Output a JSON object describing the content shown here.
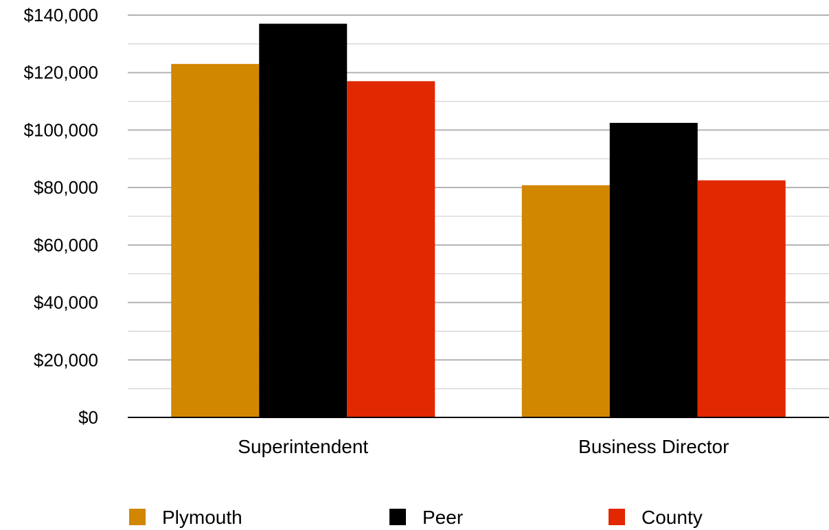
{
  "chart_data": {
    "type": "bar",
    "categories": [
      "Superintendent",
      "Business Director"
    ],
    "series": [
      {
        "name": "Plymouth",
        "values": [
          123000,
          80800
        ],
        "color": "#d18700"
      },
      {
        "name": "Peer",
        "values": [
          137000,
          102500
        ],
        "color": "#000000"
      },
      {
        "name": "County",
        "values": [
          117000,
          82500
        ],
        "color": "#e22800"
      }
    ],
    "ylim": [
      0,
      140000
    ],
    "yticks": [
      "$0",
      "$20,000",
      "$40,000",
      "$60,000",
      "$80,000",
      "$100,000",
      "$120,000",
      "$140,000"
    ],
    "ytick_values": [
      0,
      20000,
      40000,
      60000,
      80000,
      100000,
      120000,
      140000
    ],
    "grid": true,
    "minor_grid": true,
    "legend": "bottom",
    "gridline_color": "#b3b3b3",
    "axis_color": "#000000"
  }
}
